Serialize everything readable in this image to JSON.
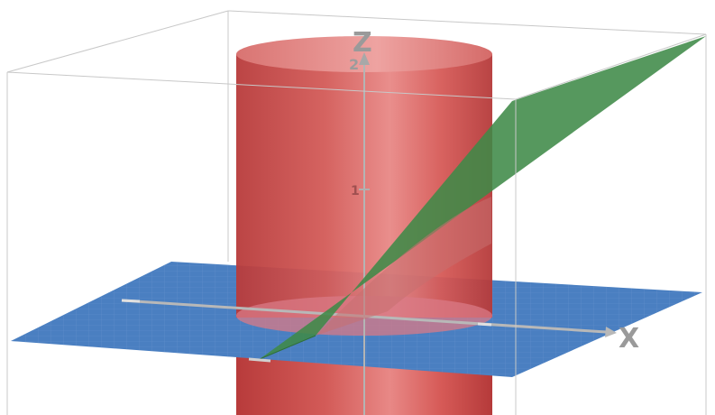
{
  "scene": {
    "type": "3d-surface-plot",
    "objects": [
      {
        "name": "cylinder",
        "color": "#d9534f"
      },
      {
        "name": "plane-z0",
        "color": "#4a7fc1"
      },
      {
        "name": "slanted-plane",
        "color": "#3f8a48"
      }
    ]
  },
  "axes": {
    "x": {
      "label": "X"
    },
    "z": {
      "label": "Z",
      "ticks": [
        "1",
        "2"
      ]
    }
  },
  "colors": {
    "cylinder": "#d9534f",
    "xy_plane": "#4a7fc1",
    "slanted_plane": "#3f8a48",
    "axis": "#b0b0b0",
    "box_edges": "#c8c8c8"
  }
}
